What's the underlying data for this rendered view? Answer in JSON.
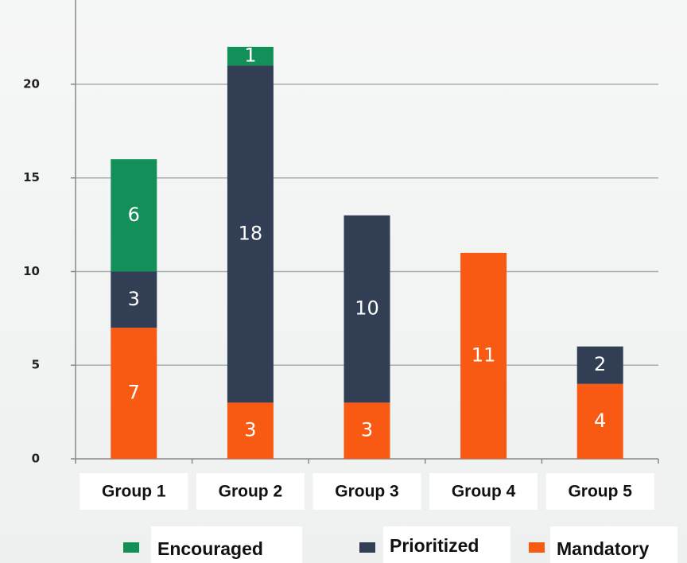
{
  "chart_data": {
    "type": "stacked_bar",
    "categories": [
      "Group 1",
      "Group 2",
      "Group 3",
      "Group 4",
      "Group 5"
    ],
    "series": [
      {
        "name": "Mandatory",
        "color": "#f85a14",
        "values": [
          7,
          3,
          3,
          11,
          4
        ]
      },
      {
        "name": "Prioritized",
        "color": "#323e53",
        "values": [
          3,
          18,
          10,
          0,
          2
        ]
      },
      {
        "name": "Encouraged",
        "color": "#13905a",
        "values": [
          6,
          1,
          0,
          0,
          0
        ]
      }
    ],
    "legend_order": [
      "Encouraged",
      "Prioritized",
      "Mandatory"
    ],
    "ylim": [
      0,
      24.5
    ],
    "yticks": [
      0,
      5,
      10,
      15,
      20
    ],
    "grid": true
  }
}
